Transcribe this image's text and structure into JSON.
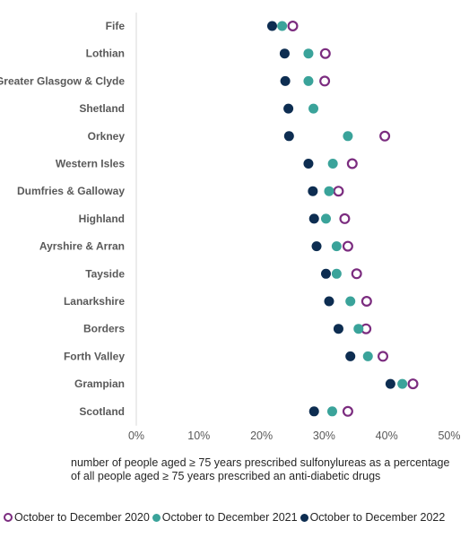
{
  "chart_data": {
    "type": "scatter",
    "orientation": "horizontal-dot-plot",
    "categories": [
      "Fife",
      "Lothian",
      "Greater Glasgow & Clyde",
      "Shetland",
      "Orkney",
      "Western Isles",
      "Dumfries & Galloway",
      "Highland",
      "Ayrshire & Arran",
      "Tayside",
      "Lanarkshire",
      "Borders",
      "Forth Valley",
      "Grampian",
      "Scotland"
    ],
    "series": [
      {
        "name": "October to December 2020",
        "color": "#7b2c7f",
        "marker": "hollow-circle",
        "values": [
          25.0,
          30.2,
          30.1,
          null,
          39.7,
          34.5,
          32.3,
          33.3,
          33.8,
          35.2,
          36.8,
          36.7,
          39.4,
          44.2,
          33.8
        ]
      },
      {
        "name": "October to December 2021",
        "color": "#3aa39a",
        "marker": "filled-circle",
        "values": [
          23.3,
          27.5,
          27.5,
          28.3,
          33.8,
          31.4,
          30.8,
          30.3,
          32.0,
          32.0,
          34.2,
          35.5,
          37.0,
          42.5,
          31.3
        ]
      },
      {
        "name": "October to December 2022",
        "color": "#0d2d51",
        "marker": "filled-circle",
        "values": [
          21.7,
          23.7,
          23.8,
          24.3,
          24.4,
          27.5,
          28.2,
          28.4,
          28.8,
          30.3,
          30.8,
          32.3,
          34.2,
          40.6,
          28.4
        ]
      }
    ],
    "xlabel": "number of people aged ≥ 75 years prescribed sulfonylureas as a percentage of all people aged ≥ 75 years prescribed an anti-diabetic drugs",
    "ylabel": "",
    "xlim": [
      0,
      50
    ],
    "x_ticks": [
      0,
      10,
      20,
      30,
      40,
      50
    ],
    "x_tick_labels": [
      "0%",
      "10%",
      "20%",
      "30%",
      "40%",
      "50%"
    ],
    "grid": false,
    "legend_position": "bottom"
  }
}
